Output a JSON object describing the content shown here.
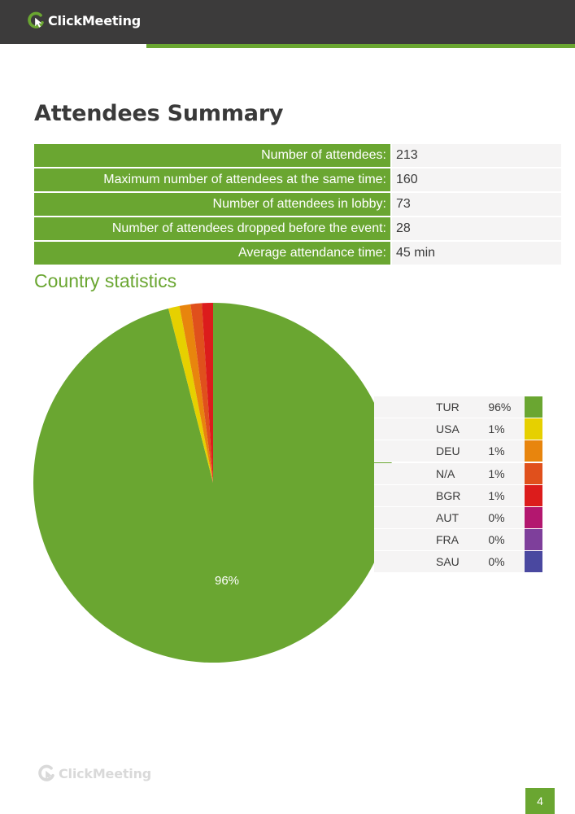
{
  "header": {
    "logo_text": "ClickMeeting",
    "colors": {
      "bar": "#3c3b3b",
      "accent": "#6aa631"
    }
  },
  "title": "Attendees Summary",
  "summary": [
    {
      "label": "Number of attendees:",
      "value": "213"
    },
    {
      "label": "Maximum number of attendees at the same time:",
      "value": "160"
    },
    {
      "label": "Number of attendees in lobby:",
      "value": "73"
    },
    {
      "label": "Number of attendees dropped before the event:",
      "value": "28"
    },
    {
      "label": "Average attendance time:",
      "value": "45 min"
    }
  ],
  "country_section_title": "Country statistics",
  "chart_data": {
    "type": "pie",
    "slices": [
      {
        "label": "TUR",
        "value": 96,
        "display": "96%",
        "color": "#6aa631"
      },
      {
        "label": "USA",
        "value": 1,
        "display": "1%",
        "color": "#e6d000"
      },
      {
        "label": "DEU",
        "value": 1,
        "display": "1%",
        "color": "#e8850d"
      },
      {
        "label": "N/A",
        "value": 1,
        "display": "1%",
        "color": "#e0501c"
      },
      {
        "label": "BGR",
        "value": 1,
        "display": "1%",
        "color": "#dc1c1c"
      },
      {
        "label": "AUT",
        "value": 0,
        "display": "0%",
        "color": "#b3176f"
      },
      {
        "label": "FRA",
        "value": 0,
        "display": "0%",
        "color": "#7e3f9b"
      },
      {
        "label": "SAU",
        "value": 0,
        "display": "0%",
        "color": "#4a48a0"
      }
    ],
    "slice_labels": [
      "96%"
    ],
    "legend_position": "right"
  },
  "footer": {
    "logo_text": "ClickMeeting",
    "page_number": "4"
  }
}
